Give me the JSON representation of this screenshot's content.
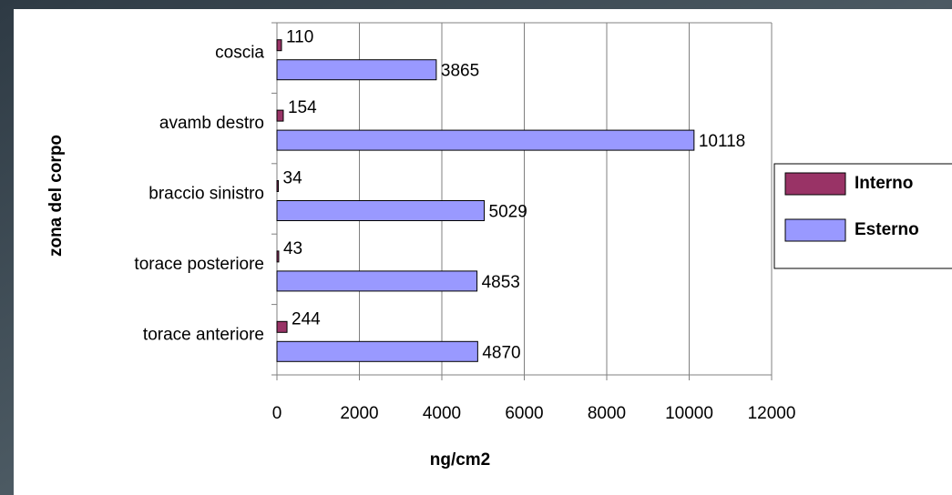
{
  "chart_data": {
    "type": "bar",
    "orientation": "horizontal",
    "x_label": "ng/cm2",
    "y_label": "zona  del corpo",
    "categories": [
      "torace anteriore",
      "torace posteriore",
      "braccio sinistro",
      "avamb destro",
      "coscia"
    ],
    "series": [
      {
        "name": "Interno",
        "color": "#993366",
        "values": [
          244,
          43,
          34,
          154,
          110
        ]
      },
      {
        "name": "Esterno",
        "color": "#9999ff",
        "values": [
          4870,
          4853,
          5029,
          10118,
          3865
        ]
      }
    ],
    "xlim": [
      0,
      12000
    ],
    "xticks": [
      0,
      2000,
      4000,
      6000,
      8000,
      10000,
      12000
    ],
    "grid": true,
    "legend": "right"
  }
}
